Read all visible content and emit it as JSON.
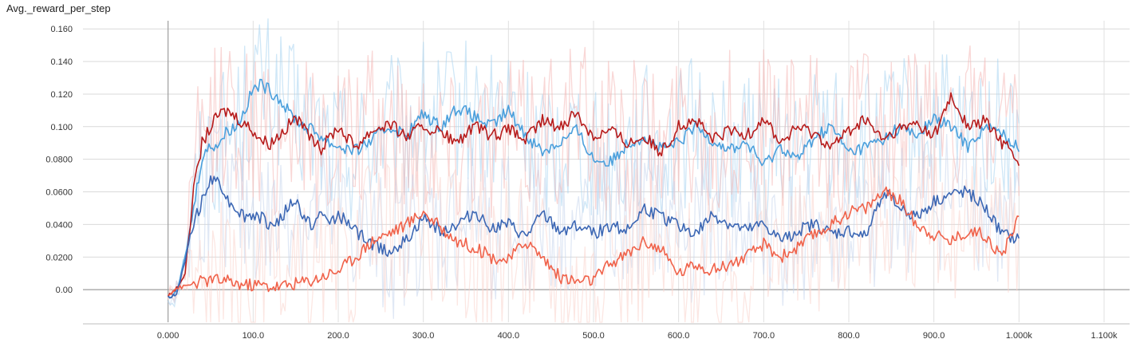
{
  "chart_data": {
    "type": "line",
    "title": "Avg._reward_per_step",
    "xlabel": "",
    "ylabel": "",
    "xlim": [
      -100,
      1130
    ],
    "ylim": [
      -0.02,
      0.165
    ],
    "x_ticks": [
      0,
      100,
      200,
      300,
      400,
      500,
      600,
      700,
      800,
      900,
      1000,
      1100
    ],
    "x_tick_labels": [
      "0.000",
      "100.0",
      "200.0",
      "300.0",
      "400.0",
      "500.0",
      "600.0",
      "700.0",
      "800.0",
      "900.0",
      "1.000k",
      "1.100k"
    ],
    "y_ticks": [
      0,
      0.02,
      0.04,
      0.06,
      0.08,
      0.1,
      0.12,
      0.14,
      0.16
    ],
    "y_tick_labels": [
      "0.00",
      "0.0200",
      "0.0400",
      "0.0600",
      "0.0800",
      "0.100",
      "0.120",
      "0.140",
      "0.160"
    ],
    "grid": true,
    "legend": "none",
    "series": [
      {
        "color": "#4a9fdc",
        "raw_color": "#a8d4f0",
        "x": [
          0,
          10,
          20,
          30,
          40,
          50,
          60,
          70,
          80,
          90,
          100,
          110,
          120,
          130,
          140,
          150,
          160,
          170,
          180,
          190,
          200,
          220,
          240,
          260,
          280,
          300,
          320,
          340,
          360,
          380,
          400,
          420,
          440,
          460,
          480,
          500,
          520,
          540,
          560,
          580,
          600,
          620,
          640,
          660,
          680,
          700,
          720,
          740,
          760,
          780,
          800,
          820,
          840,
          860,
          880,
          900,
          920,
          940,
          960,
          980,
          1000
        ],
        "y": [
          -0.005,
          -0.002,
          0.02,
          0.05,
          0.082,
          0.088,
          0.09,
          0.098,
          0.1,
          0.11,
          0.123,
          0.126,
          0.122,
          0.118,
          0.11,
          0.105,
          0.1,
          0.098,
          0.094,
          0.09,
          0.088,
          0.085,
          0.092,
          0.1,
          0.095,
          0.108,
          0.1,
          0.112,
          0.106,
          0.1,
          0.11,
          0.095,
          0.085,
          0.09,
          0.098,
          0.08,
          0.078,
          0.09,
          0.094,
          0.086,
          0.09,
          0.1,
          0.092,
          0.086,
          0.09,
          0.076,
          0.088,
          0.08,
          0.094,
          0.1,
          0.084,
          0.088,
          0.092,
          0.1,
          0.094,
          0.105,
          0.1,
          0.088,
          0.1,
          0.096,
          0.086
        ]
      },
      {
        "color": "#b71c1c",
        "raw_color": "#f4b6b4",
        "x": [
          0,
          10,
          20,
          30,
          40,
          50,
          60,
          70,
          80,
          90,
          100,
          110,
          120,
          130,
          140,
          150,
          160,
          170,
          180,
          190,
          200,
          220,
          240,
          260,
          280,
          300,
          320,
          340,
          360,
          380,
          400,
          420,
          440,
          460,
          480,
          500,
          520,
          540,
          560,
          580,
          600,
          620,
          640,
          660,
          680,
          700,
          720,
          740,
          760,
          780,
          800,
          820,
          840,
          860,
          880,
          900,
          920,
          940,
          960,
          980,
          1000
        ],
        "y": [
          -0.004,
          0.001,
          0.01,
          0.06,
          0.09,
          0.1,
          0.108,
          0.11,
          0.106,
          0.102,
          0.098,
          0.092,
          0.09,
          0.095,
          0.1,
          0.106,
          0.098,
          0.09,
          0.086,
          0.094,
          0.1,
          0.088,
          0.098,
          0.102,
          0.094,
          0.1,
          0.096,
          0.09,
          0.1,
          0.094,
          0.098,
          0.092,
          0.104,
          0.1,
          0.108,
          0.094,
          0.098,
          0.09,
          0.094,
          0.084,
          0.1,
          0.104,
          0.092,
          0.098,
          0.094,
          0.106,
          0.09,
          0.1,
          0.096,
          0.088,
          0.098,
          0.104,
          0.092,
          0.098,
          0.102,
          0.094,
          0.118,
          0.1,
          0.104,
          0.09,
          0.08
        ]
      },
      {
        "color": "#3c67b4",
        "raw_color": "#c6d5ec",
        "x": [
          0,
          10,
          20,
          30,
          40,
          50,
          60,
          70,
          80,
          90,
          100,
          110,
          120,
          130,
          140,
          150,
          160,
          170,
          180,
          190,
          200,
          220,
          240,
          260,
          280,
          300,
          320,
          340,
          360,
          380,
          400,
          420,
          440,
          460,
          480,
          500,
          520,
          540,
          560,
          580,
          600,
          620,
          640,
          660,
          680,
          700,
          720,
          740,
          760,
          780,
          800,
          820,
          840,
          860,
          880,
          900,
          920,
          940,
          960,
          980,
          1000
        ],
        "y": [
          -0.005,
          -0.003,
          0.018,
          0.04,
          0.055,
          0.066,
          0.068,
          0.055,
          0.05,
          0.045,
          0.046,
          0.044,
          0.04,
          0.042,
          0.05,
          0.055,
          0.044,
          0.04,
          0.046,
          0.042,
          0.046,
          0.036,
          0.028,
          0.024,
          0.03,
          0.044,
          0.036,
          0.04,
          0.048,
          0.038,
          0.04,
          0.032,
          0.046,
          0.036,
          0.04,
          0.034,
          0.04,
          0.036,
          0.05,
          0.044,
          0.04,
          0.034,
          0.046,
          0.04,
          0.036,
          0.04,
          0.03,
          0.036,
          0.04,
          0.034,
          0.036,
          0.032,
          0.06,
          0.05,
          0.044,
          0.054,
          0.058,
          0.06,
          0.05,
          0.034,
          0.03
        ]
      },
      {
        "color": "#f0624a",
        "raw_color": "#fad3cc",
        "x": [
          0,
          10,
          20,
          30,
          40,
          50,
          60,
          70,
          80,
          90,
          100,
          110,
          120,
          130,
          140,
          150,
          160,
          170,
          180,
          190,
          200,
          220,
          240,
          260,
          280,
          300,
          320,
          340,
          360,
          380,
          400,
          420,
          440,
          460,
          480,
          500,
          520,
          540,
          560,
          580,
          600,
          620,
          640,
          660,
          680,
          700,
          720,
          740,
          760,
          780,
          800,
          820,
          840,
          860,
          880,
          900,
          920,
          940,
          960,
          980,
          1000
        ],
        "y": [
          -0.003,
          0.001,
          0.002,
          0.004,
          0.005,
          0.006,
          0.006,
          0.005,
          0.004,
          0.003,
          0.003,
          0.003,
          0.002,
          0.002,
          0.003,
          0.004,
          0.005,
          0.006,
          0.008,
          0.01,
          0.012,
          0.02,
          0.03,
          0.035,
          0.04,
          0.048,
          0.038,
          0.03,
          0.026,
          0.02,
          0.018,
          0.03,
          0.02,
          0.008,
          0.005,
          0.006,
          0.016,
          0.022,
          0.03,
          0.024,
          0.01,
          0.016,
          0.012,
          0.016,
          0.02,
          0.028,
          0.02,
          0.026,
          0.034,
          0.04,
          0.048,
          0.05,
          0.06,
          0.055,
          0.04,
          0.034,
          0.03,
          0.036,
          0.034,
          0.02,
          0.046
        ]
      }
    ]
  }
}
